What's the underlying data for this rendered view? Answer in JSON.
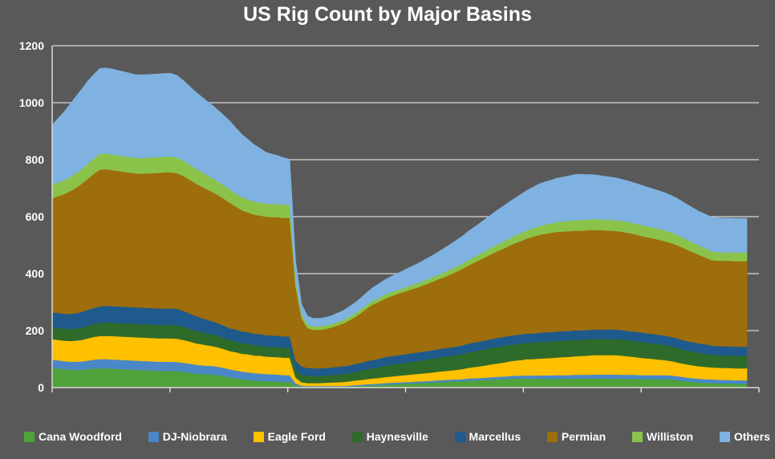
{
  "chart_data": {
    "type": "area",
    "stacked": true,
    "title": "US Rig Count by Major Basins",
    "xlabel": "",
    "ylabel": "",
    "ylim": [
      0,
      1200
    ],
    "y_ticks": [
      0,
      200,
      400,
      600,
      800,
      1000,
      1200
    ],
    "x_tick_count": 7,
    "grid": true,
    "legend_position": "bottom",
    "x": [
      0,
      1,
      2,
      3,
      4,
      5,
      6,
      7,
      8,
      9,
      10,
      11,
      12,
      13,
      14,
      15,
      16,
      17,
      18,
      19,
      20,
      21,
      22,
      23,
      24,
      25,
      26,
      27,
      28,
      29,
      30,
      31,
      32,
      33,
      34,
      35,
      36,
      37,
      38,
      39,
      40,
      41,
      42,
      43,
      44,
      45,
      46,
      47,
      48,
      49,
      50,
      51,
      52,
      53,
      54,
      55,
      56,
      57,
      58,
      59,
      60,
      61,
      62,
      63,
      64,
      65,
      66,
      67,
      68,
      69,
      70,
      71,
      72,
      73,
      74,
      75,
      76,
      77,
      78,
      79,
      80,
      81,
      82,
      83,
      84,
      85,
      86,
      87,
      88,
      89,
      90,
      91,
      92,
      93,
      94,
      95,
      96,
      97,
      98,
      99,
      100,
      101,
      102,
      103,
      104,
      105,
      106,
      107,
      108,
      109,
      110,
      111,
      112,
      113,
      114,
      115,
      116,
      117
    ],
    "series": [
      {
        "name": "Cana Woodford",
        "color": "#4fa23a",
        "values": [
          70,
          68,
          65,
          63,
          62,
          63,
          65,
          67,
          68,
          68,
          67,
          66,
          65,
          64,
          63,
          62,
          61,
          60,
          59,
          59,
          59,
          58,
          56,
          53,
          50,
          48,
          47,
          46,
          44,
          40,
          36,
          32,
          29,
          27,
          25,
          24,
          23,
          22,
          21,
          20,
          20,
          8,
          4,
          3,
          3,
          3,
          3,
          3,
          3,
          3,
          4,
          5,
          6,
          7,
          8,
          9,
          10,
          11,
          12,
          13,
          14,
          15,
          16,
          17,
          18,
          19,
          20,
          21,
          22,
          23,
          24,
          25,
          26,
          27,
          28,
          29,
          30,
          31,
          32,
          32,
          32,
          31,
          31,
          31,
          31,
          31,
          31,
          31,
          32,
          32,
          32,
          32,
          32,
          32,
          32,
          32,
          31,
          31,
          31,
          30,
          30,
          30,
          30,
          30,
          29,
          27,
          24,
          22,
          20,
          18,
          17,
          16,
          15,
          14,
          14,
          13,
          13,
          13
        ]
      },
      {
        "name": "DJ-Niobrara",
        "color": "#4a87c6",
        "values": [
          28,
          28,
          28,
          28,
          29,
          29,
          30,
          31,
          32,
          32,
          32,
          32,
          32,
          32,
          32,
          32,
          32,
          32,
          32,
          32,
          32,
          32,
          32,
          32,
          31,
          31,
          30,
          30,
          29,
          29,
          28,
          28,
          27,
          27,
          26,
          26,
          25,
          25,
          25,
          24,
          24,
          7,
          3,
          3,
          3,
          3,
          3,
          3,
          3,
          3,
          3,
          4,
          4,
          5,
          5,
          5,
          6,
          6,
          6,
          6,
          6,
          6,
          6,
          6,
          6,
          7,
          7,
          7,
          7,
          7,
          8,
          8,
          8,
          8,
          9,
          9,
          9,
          10,
          10,
          10,
          11,
          11,
          12,
          12,
          12,
          13,
          13,
          13,
          13,
          13,
          13,
          14,
          14,
          14,
          14,
          14,
          14,
          14,
          14,
          14,
          14,
          14,
          14,
          14,
          14,
          14,
          14,
          13,
          13,
          13,
          13,
          13,
          13,
          13,
          13,
          13,
          13,
          13
        ]
      },
      {
        "name": "Eagle Ford",
        "color": "#ffc000",
        "values": [
          72,
          72,
          72,
          73,
          74,
          76,
          78,
          80,
          81,
          82,
          82,
          82,
          82,
          82,
          82,
          82,
          82,
          82,
          82,
          82,
          82,
          82,
          80,
          78,
          76,
          74,
          72,
          70,
          68,
          66,
          64,
          64,
          63,
          63,
          62,
          62,
          61,
          61,
          61,
          61,
          61,
          20,
          12,
          10,
          10,
          10,
          11,
          12,
          13,
          14,
          15,
          16,
          17,
          18,
          19,
          20,
          21,
          22,
          23,
          24,
          25,
          26,
          27,
          28,
          29,
          30,
          31,
          32,
          33,
          35,
          37,
          39,
          41,
          43,
          45,
          47,
          49,
          51,
          53,
          55,
          57,
          58,
          59,
          60,
          61,
          62,
          63,
          64,
          65,
          66,
          67,
          68,
          68,
          68,
          68,
          68,
          67,
          65,
          63,
          61,
          59,
          57,
          55,
          53,
          51,
          49,
          47,
          46,
          45,
          44,
          43,
          42,
          42,
          42,
          42,
          42,
          42,
          42
        ]
      },
      {
        "name": "Haynesville",
        "color": "#2e6b2a",
        "values": [
          42,
          42,
          42,
          42,
          42,
          43,
          44,
          45,
          46,
          47,
          47,
          47,
          47,
          47,
          47,
          47,
          47,
          47,
          47,
          47,
          47,
          47,
          46,
          45,
          44,
          43,
          42,
          41,
          40,
          39,
          38,
          38,
          37,
          37,
          36,
          36,
          35,
          35,
          35,
          35,
          35,
          30,
          27,
          26,
          25,
          25,
          25,
          26,
          27,
          28,
          29,
          30,
          32,
          34,
          36,
          38,
          40,
          41,
          42,
          43,
          44,
          45,
          46,
          47,
          48,
          49,
          50,
          51,
          52,
          53,
          54,
          55,
          56,
          57,
          58,
          58,
          58,
          58,
          58,
          58,
          58,
          58,
          58,
          58,
          58,
          58,
          58,
          58,
          58,
          57,
          57,
          57,
          57,
          57,
          57,
          57,
          57,
          56,
          56,
          56,
          55,
          55,
          54,
          53,
          52,
          51,
          50,
          49,
          48,
          47,
          46,
          45,
          44,
          44,
          44,
          44,
          44,
          44
        ]
      },
      {
        "name": "Marcellus",
        "color": "#1e5a8c",
        "values": [
          52,
          52,
          52,
          53,
          54,
          55,
          56,
          57,
          58,
          58,
          58,
          58,
          58,
          58,
          58,
          58,
          58,
          58,
          58,
          58,
          58,
          58,
          56,
          54,
          52,
          50,
          48,
          46,
          44,
          43,
          42,
          42,
          41,
          41,
          40,
          40,
          40,
          40,
          40,
          40,
          40,
          30,
          28,
          27,
          27,
          27,
          27,
          27,
          27,
          27,
          27,
          28,
          28,
          29,
          29,
          29,
          30,
          30,
          30,
          30,
          30,
          30,
          30,
          30,
          30,
          30,
          30,
          30,
          30,
          30,
          31,
          31,
          31,
          31,
          31,
          32,
          32,
          32,
          32,
          32,
          32,
          32,
          32,
          33,
          33,
          33,
          33,
          33,
          33,
          33,
          33,
          33,
          33,
          33,
          33,
          33,
          33,
          33,
          33,
          33,
          33,
          33,
          33,
          33,
          33,
          33,
          33,
          33,
          33,
          33,
          33,
          32,
          32,
          32,
          32,
          32,
          32,
          32
        ]
      },
      {
        "name": "Permian",
        "color": "#9e6d0c",
        "values": [
          400,
          410,
          420,
          430,
          440,
          450,
          460,
          470,
          480,
          480,
          478,
          476,
          474,
          472,
          470,
          470,
          472,
          474,
          476,
          478,
          478,
          476,
          474,
          470,
          466,
          462,
          458,
          454,
          450,
          445,
          440,
          430,
          425,
          420,
          418,
          416,
          416,
          416,
          416,
          416,
          416,
          260,
          170,
          140,
          135,
          135,
          137,
          140,
          145,
          150,
          158,
          165,
          175,
          185,
          195,
          200,
          205,
          210,
          215,
          218,
          222,
          226,
          230,
          235,
          240,
          245,
          250,
          256,
          262,
          268,
          274,
          280,
          286,
          292,
          298,
          304,
          310,
          316,
          322,
          328,
          334,
          340,
          344,
          346,
          348,
          350,
          350,
          350,
          350,
          350,
          350,
          350,
          349,
          348,
          347,
          346,
          345,
          344,
          342,
          340,
          338,
          336,
          334,
          332,
          330,
          328,
          325,
          320,
          315,
          310,
          305,
          300,
          300,
          300,
          300,
          300,
          300,
          300
        ]
      },
      {
        "name": "Williston",
        "color": "#8bc34a",
        "values": [
          48,
          48,
          49,
          50,
          51,
          52,
          53,
          54,
          55,
          55,
          55,
          55,
          55,
          55,
          55,
          55,
          55,
          55,
          55,
          55,
          55,
          55,
          54,
          53,
          52,
          51,
          50,
          49,
          48,
          47,
          46,
          46,
          46,
          46,
          46,
          46,
          46,
          46,
          46,
          46,
          46,
          20,
          14,
          12,
          12,
          12,
          12,
          12,
          12,
          12,
          13,
          13,
          13,
          13,
          13,
          14,
          14,
          14,
          14,
          14,
          15,
          15,
          15,
          16,
          16,
          16,
          17,
          17,
          18,
          18,
          19,
          20,
          21,
          22,
          23,
          24,
          25,
          26,
          27,
          28,
          29,
          30,
          31,
          32,
          33,
          34,
          35,
          36,
          37,
          38,
          38,
          38,
          38,
          38,
          38,
          38,
          38,
          38,
          38,
          38,
          38,
          38,
          38,
          38,
          38,
          37,
          36,
          35,
          34,
          33,
          32,
          31,
          30,
          30,
          30,
          30,
          30,
          30
        ]
      },
      {
        "name": "Others",
        "color": "#7fb2e0",
        "values": [
          210,
          225,
          240,
          255,
          270,
          280,
          290,
          295,
          300,
          300,
          300,
          298,
          296,
          294,
          292,
          292,
          292,
          292,
          292,
          292,
          292,
          288,
          282,
          276,
          270,
          265,
          260,
          255,
          250,
          245,
          240,
          230,
          220,
          210,
          200,
          190,
          180,
          175,
          170,
          165,
          160,
          70,
          35,
          30,
          28,
          28,
          28,
          29,
          31,
          33,
          35,
          37,
          40,
          43,
          46,
          49,
          52,
          55,
          58,
          61,
          64,
          67,
          70,
          73,
          76,
          80,
          84,
          88,
          92,
          96,
          100,
          104,
          108,
          112,
          116,
          120,
          124,
          128,
          132,
          136,
          140,
          144,
          148,
          150,
          152,
          154,
          156,
          158,
          160,
          160,
          158,
          156,
          154,
          152,
          150,
          148,
          146,
          144,
          142,
          140,
          138,
          136,
          134,
          132,
          130,
          128,
          126,
          124,
          122,
          120,
          120,
          120,
          120,
          120,
          120,
          120,
          120,
          120
        ]
      }
    ]
  }
}
